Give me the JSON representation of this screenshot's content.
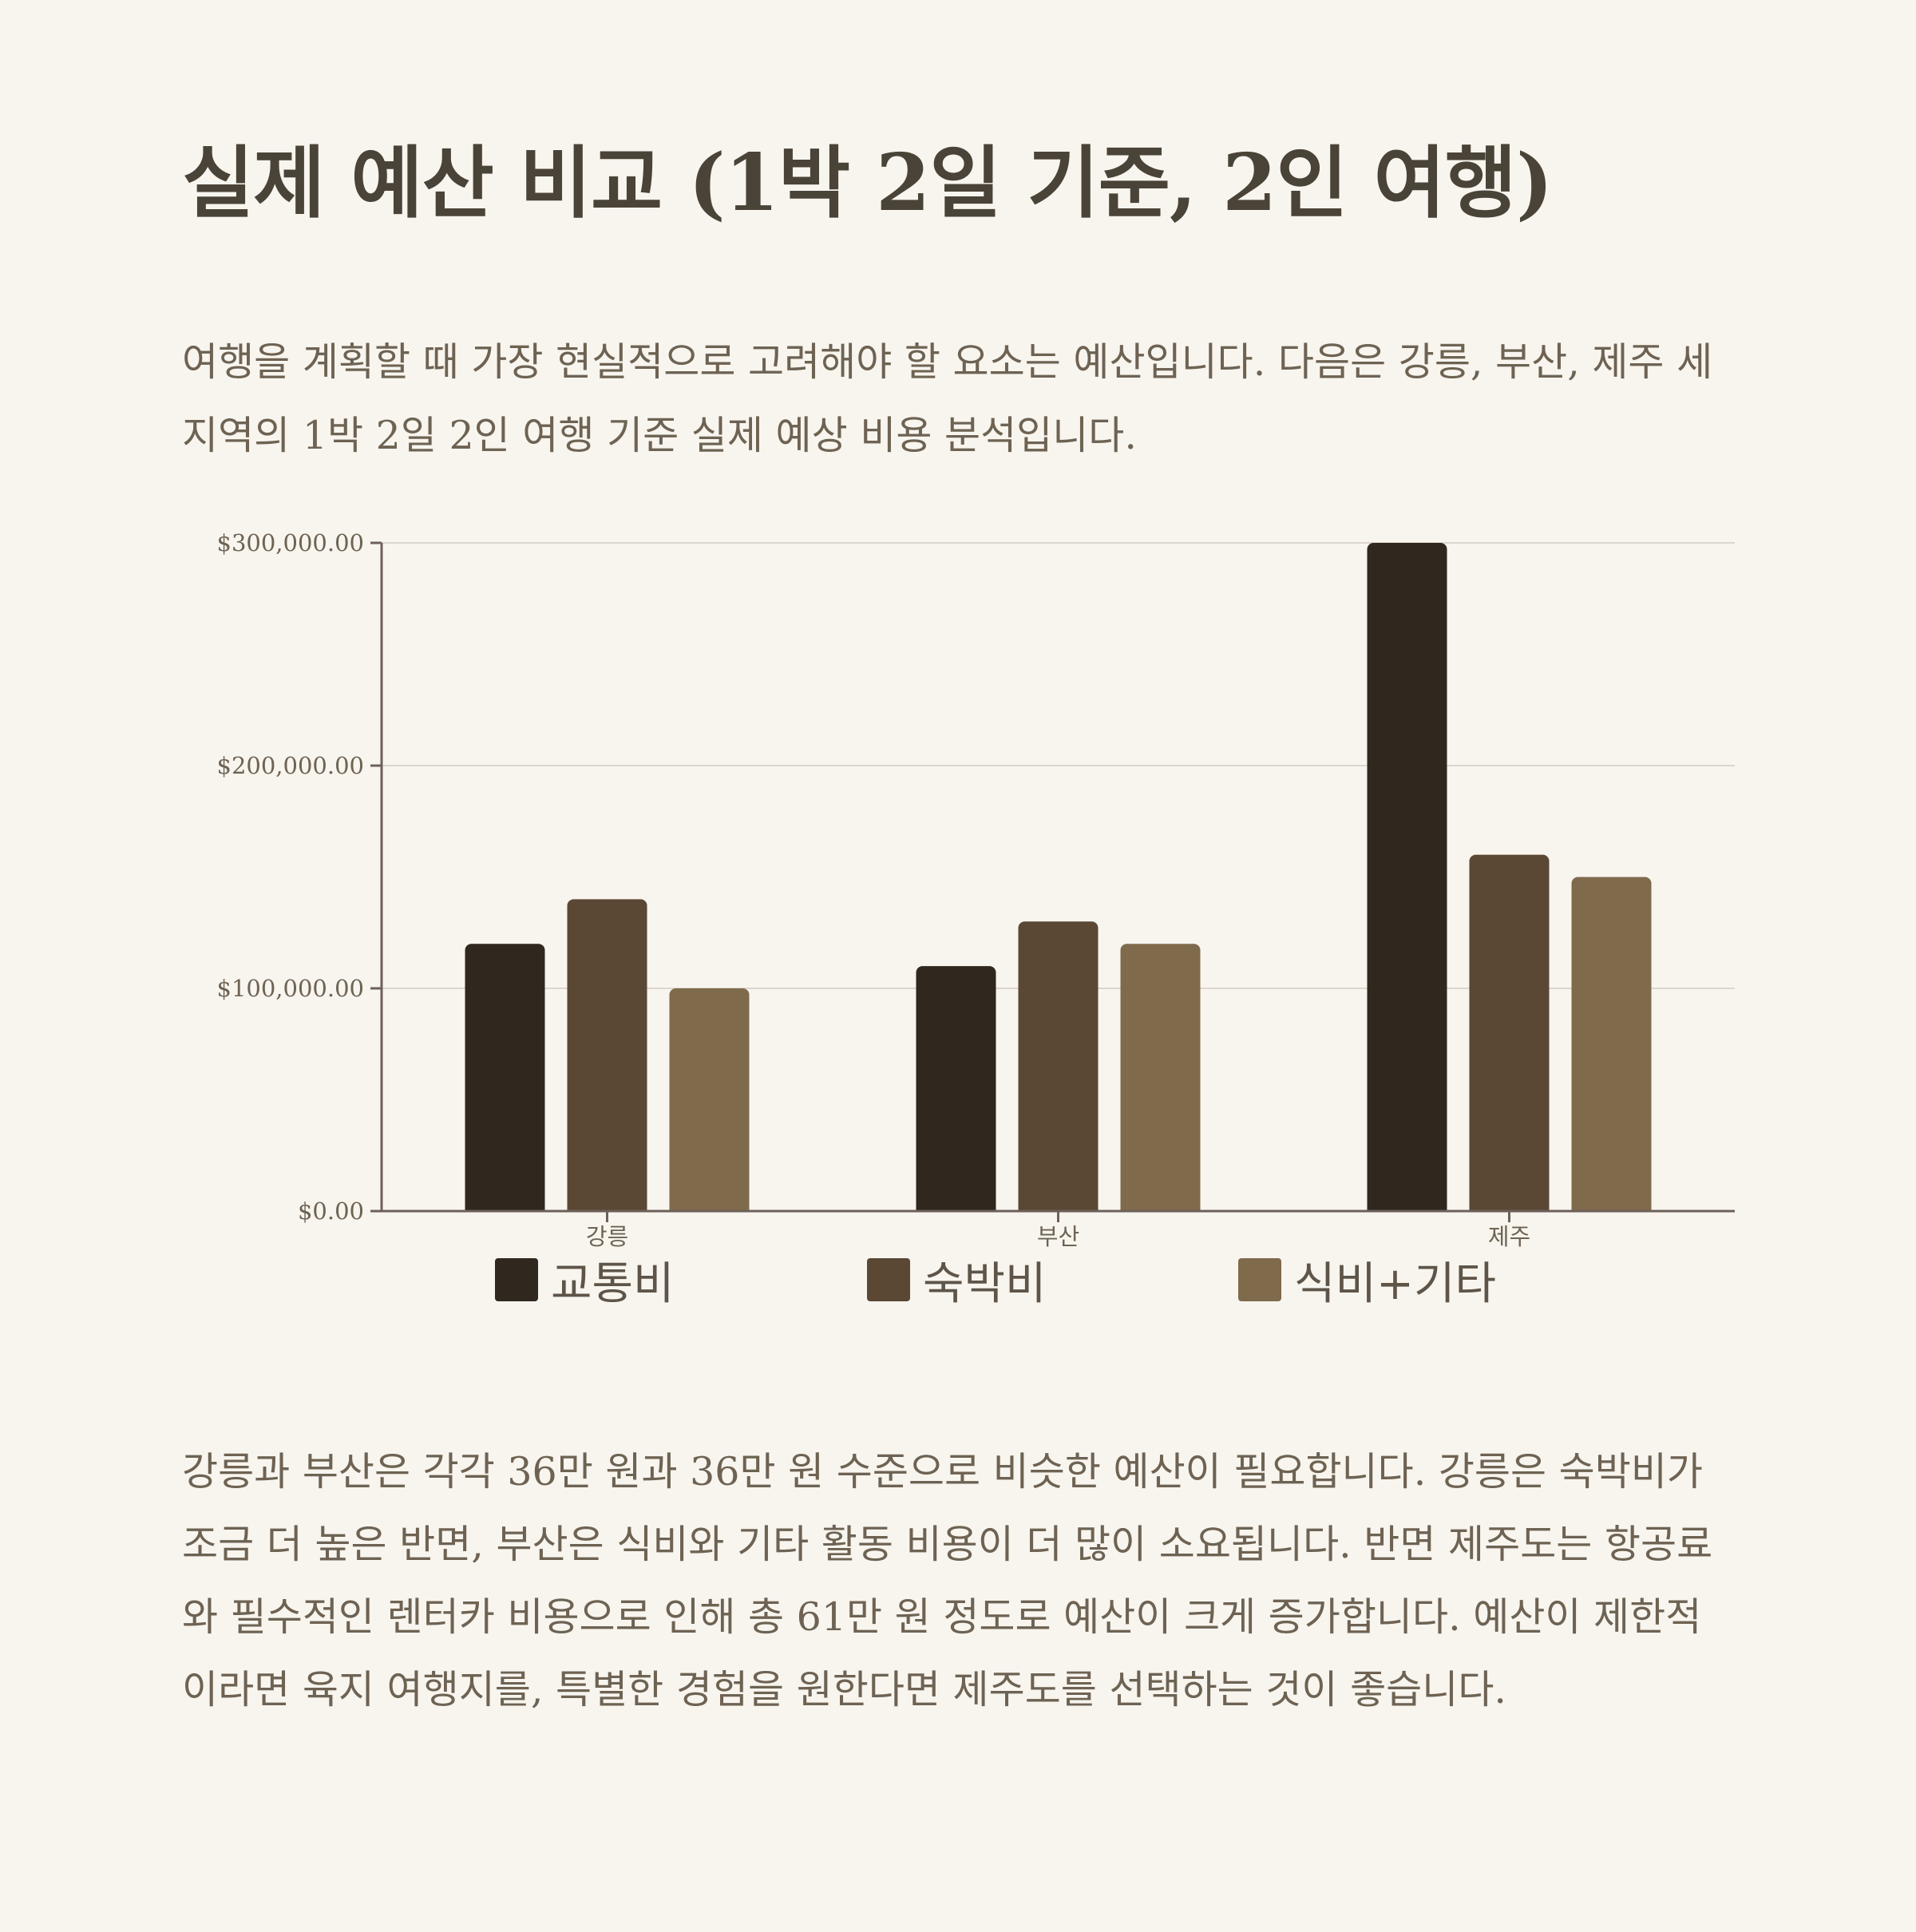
{
  "title": "실제 예산 비교 (1박 2일 기준, 2인 여행)",
  "intro": "여행을 계획할 때 가장 현실적으로 고려해야 할 요소는 예산입니다. 다음은 강릉, 부산, 제주 세 지역의 1박 2일 2인 여행 기준 실제 예상 비용 분석입니다.",
  "summary": "강릉과 부산은 각각 36만 원과 36만 원 수준으로 비슷한 예산이 필요합니다. 강릉은 숙박비가 조금 더 높은 반면, 부산은 식비와 기타 활동 비용이 더 많이 소요됩니다. 반면 제주도는 항공료와 필수적인 렌터카 비용으로 인해 총 61만 원 정도로 예산이 크게 증가합니다. 예산이 제한적이라면 육지 여행지를, 특별한 경험을 원한다면 제주도를 선택하는 것이 좋습니다.",
  "chart_data": {
    "type": "bar",
    "categories": [
      "강릉",
      "부산",
      "제주"
    ],
    "series": [
      {
        "name": "교통비",
        "values": [
          120000,
          110000,
          300000
        ],
        "color": "#30281f"
      },
      {
        "name": "숙박비",
        "values": [
          140000,
          130000,
          160000
        ],
        "color": "#5a4835"
      },
      {
        "name": "식비+기타",
        "values": [
          100000,
          120000,
          150000
        ],
        "color": "#806a4c"
      }
    ],
    "ylim": [
      0,
      300000
    ],
    "yticks": [
      0,
      100000,
      200000,
      300000
    ],
    "ytick_labels": [
      "$0.00",
      "$100,000.00",
      "$200,000.00",
      "$300,000.00"
    ],
    "grid": true,
    "legend_position": "bottom"
  },
  "colors": {
    "background": "#f8f5ef",
    "axis": "#6d605a",
    "grid": "#dcd6cc"
  }
}
